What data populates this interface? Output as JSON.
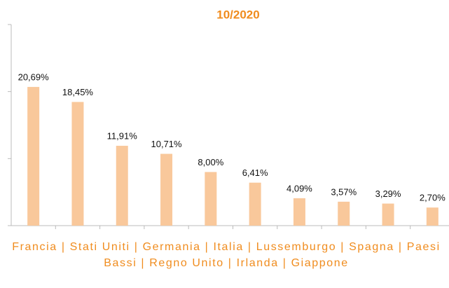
{
  "chart_data": {
    "type": "bar",
    "title": "10/2020",
    "xlabel": "Francia | Stati Uniti | Germania | Italia | Lussemburgo | Spagna | Paesi Bassi | Regno Unito | Irlanda | Giappone",
    "categories": [
      null,
      null,
      null,
      null,
      null,
      null,
      null,
      null,
      null,
      null
    ],
    "values": [
      20.69,
      18.45,
      11.91,
      10.71,
      8.0,
      6.41,
      4.09,
      3.57,
      3.29,
      2.7
    ],
    "value_labels": [
      "20,69%",
      "18,45%",
      "11,91%",
      "10,71%",
      "8,00%",
      "6,41%",
      "4,09%",
      "3,57%",
      "3,29%",
      "2,70%"
    ],
    "color": "#f9c89b",
    "ylim": [
      0,
      30
    ],
    "yticks": [
      0,
      10,
      20,
      30
    ],
    "grid": false
  }
}
